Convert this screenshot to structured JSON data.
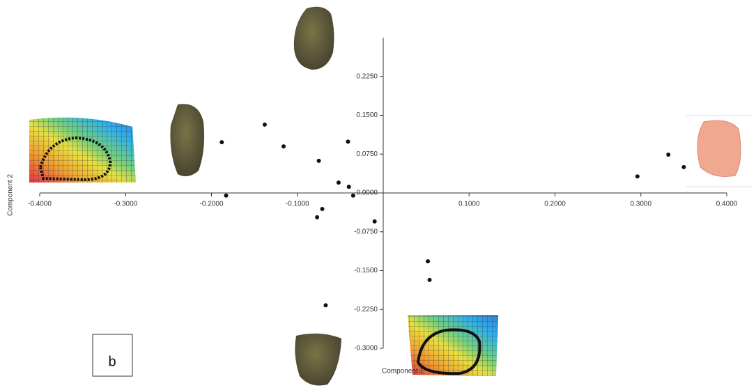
{
  "chart_data": {
    "type": "scatter",
    "xlabel": "Component 1",
    "ylabel": "Component 2",
    "annotation": "b",
    "xlim": [
      -0.4,
      0.4
    ],
    "ylim": [
      -0.3,
      0.3
    ],
    "xticks": [
      {
        "value": -0.4,
        "label": "-0.4000"
      },
      {
        "value": -0.3,
        "label": "-0.3000"
      },
      {
        "value": -0.2,
        "label": "-0.2000"
      },
      {
        "value": -0.1,
        "label": "-0.1000"
      },
      {
        "value": 0.1,
        "label": "0.1000"
      },
      {
        "value": 0.2,
        "label": "0.2000"
      },
      {
        "value": 0.3,
        "label": "0.3000"
      },
      {
        "value": 0.4,
        "label": "0.4000"
      }
    ],
    "yticks": [
      {
        "value": 0.225,
        "label": "0.2250"
      },
      {
        "value": 0.15,
        "label": "0.1500"
      },
      {
        "value": 0.075,
        "label": "0.0750"
      },
      {
        "value": 0,
        "label": "0.0000"
      },
      {
        "value": -0.075,
        "label": "-0.0750"
      },
      {
        "value": -0.15,
        "label": "-0.1500"
      },
      {
        "value": -0.225,
        "label": "-0.2250"
      },
      {
        "value": -0.3,
        "label": "-0.3000"
      }
    ],
    "color": "#111111",
    "x": [
      -0.188,
      -0.138,
      -0.116,
      -0.075,
      -0.041,
      -0.052,
      -0.04,
      -0.035,
      -0.183,
      -0.071,
      -0.077,
      -0.01,
      0.052,
      0.054,
      -0.067,
      0.296,
      0.332,
      0.35
    ],
    "values": [
      0.098,
      0.132,
      0.09,
      0.062,
      0.099,
      0.02,
      0.012,
      -0.005,
      -0.005,
      -0.031,
      -0.047,
      -0.055,
      -0.132,
      -0.168,
      -0.217,
      0.032,
      0.074,
      0.05
    ]
  }
}
